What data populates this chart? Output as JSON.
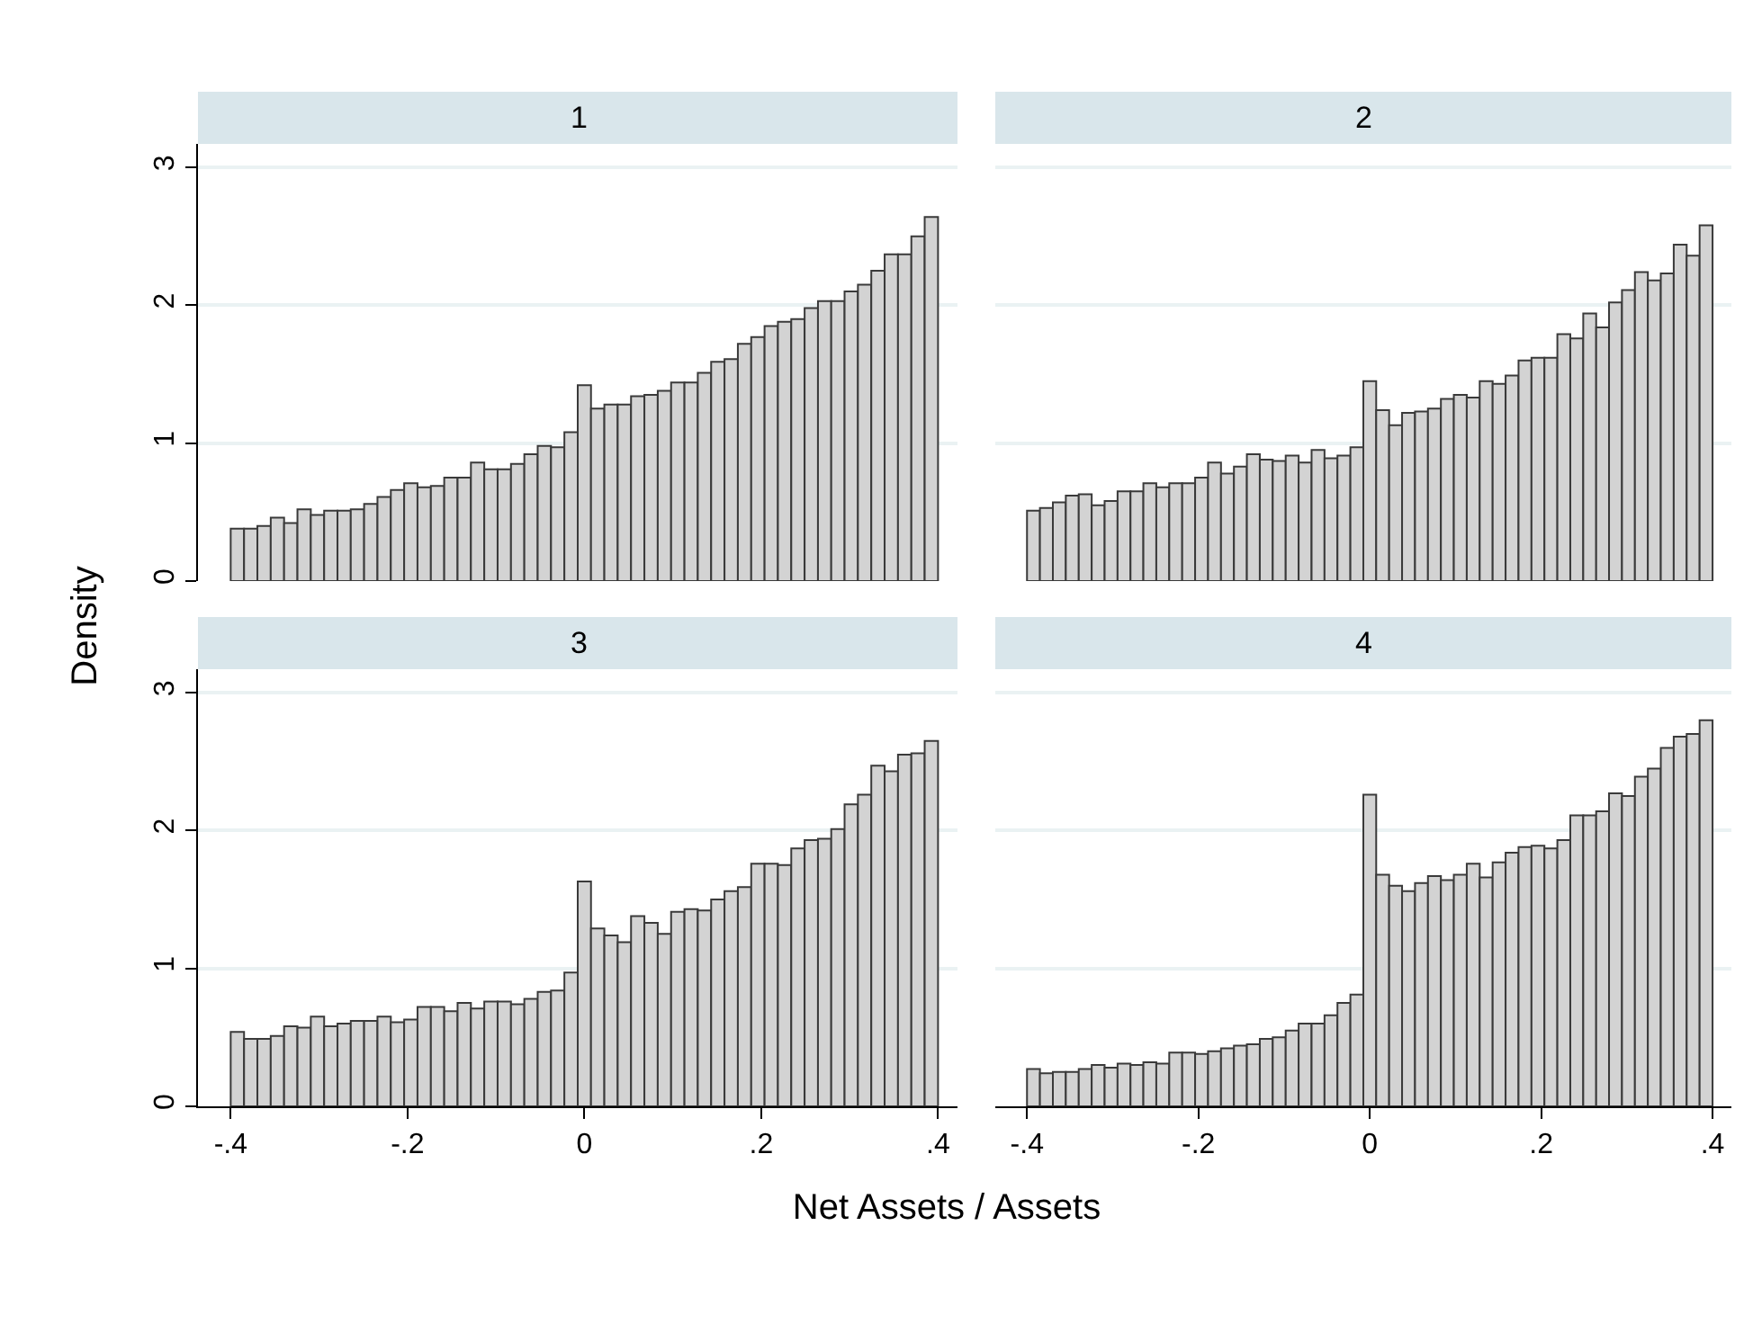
{
  "chart_data": [
    {
      "type": "histogram",
      "title": "1",
      "ylabel": "Density",
      "color": "#d3d3d3",
      "grid": "y",
      "tick_labels": "y",
      "xlim": [
        -0.437,
        0.422
      ],
      "ylim": [
        0,
        3.17
      ],
      "yticks": [
        0,
        1,
        2,
        3
      ],
      "bins": [
        -0.4,
        -0.3849,
        -0.3698,
        -0.3547,
        -0.3396,
        -0.3245,
        -0.3094,
        -0.2943,
        -0.2792,
        -0.2642,
        -0.2491,
        -0.234,
        -0.2189,
        -0.2038,
        -0.1887,
        -0.1736,
        -0.1585,
        -0.1434,
        -0.1283,
        -0.1132,
        -0.0981,
        -0.083,
        -0.0679,
        -0.0528,
        -0.0377,
        -0.0226,
        -0.0075,
        0.0075,
        0.0226,
        0.0377,
        0.0528,
        0.0679,
        0.083,
        0.0981,
        0.1132,
        0.1283,
        0.1434,
        0.1585,
        0.1736,
        0.1887,
        0.2038,
        0.2189,
        0.234,
        0.2491,
        0.2642,
        0.2792,
        0.2943,
        0.3094,
        0.3245,
        0.3396,
        0.3547,
        0.3698,
        0.3849,
        0.4
      ],
      "values": [
        0.38,
        0.38,
        0.4,
        0.46,
        0.42,
        0.52,
        0.48,
        0.51,
        0.51,
        0.52,
        0.56,
        0.61,
        0.66,
        0.71,
        0.68,
        0.69,
        0.75,
        0.75,
        0.86,
        0.81,
        0.81,
        0.85,
        0.92,
        0.98,
        0.97,
        1.08,
        1.42,
        1.25,
        1.28,
        1.28,
        1.34,
        1.35,
        1.38,
        1.44,
        1.44,
        1.51,
        1.59,
        1.61,
        1.72,
        1.77,
        1.85,
        1.88,
        1.9,
        1.98,
        2.03,
        2.03,
        2.1,
        2.15,
        2.25,
        2.37,
        2.37,
        2.5,
        2.64
      ]
    },
    {
      "type": "histogram",
      "title": "2",
      "color": "#d3d3d3",
      "grid": "y",
      "tick_labels": false,
      "xlim": [
        -0.437,
        0.422
      ],
      "yticks": [
        0,
        1,
        2,
        3
      ],
      "bins": [
        -0.4,
        -0.3849,
        -0.3698,
        -0.3547,
        -0.3396,
        -0.3245,
        -0.3094,
        -0.2943,
        -0.2792,
        -0.2642,
        -0.2491,
        -0.234,
        -0.2189,
        -0.2038,
        -0.1887,
        -0.1736,
        -0.1585,
        -0.1434,
        -0.1283,
        -0.1132,
        -0.0981,
        -0.083,
        -0.0679,
        -0.0528,
        -0.0377,
        -0.0226,
        -0.0075,
        0.0075,
        0.0226,
        0.0377,
        0.0528,
        0.0679,
        0.083,
        0.0981,
        0.1132,
        0.1283,
        0.1434,
        0.1585,
        0.1736,
        0.1887,
        0.2038,
        0.2189,
        0.234,
        0.2491,
        0.2642,
        0.2792,
        0.2943,
        0.3094,
        0.3245,
        0.3396,
        0.3547,
        0.3698,
        0.3849,
        0.4
      ],
      "values": [
        0.51,
        0.53,
        0.57,
        0.62,
        0.63,
        0.55,
        0.58,
        0.65,
        0.65,
        0.71,
        0.68,
        0.71,
        0.71,
        0.75,
        0.86,
        0.78,
        0.83,
        0.92,
        0.88,
        0.87,
        0.91,
        0.86,
        0.95,
        0.89,
        0.91,
        0.97,
        1.45,
        1.24,
        1.13,
        1.22,
        1.23,
        1.25,
        1.32,
        1.35,
        1.33,
        1.45,
        1.43,
        1.49,
        1.6,
        1.62,
        1.62,
        1.79,
        1.76,
        1.94,
        1.84,
        2.02,
        2.11,
        2.24,
        2.18,
        2.23,
        2.44,
        2.36,
        2.58
      ]
    },
    {
      "type": "histogram",
      "title": "3",
      "xlabel": "Net Assets / Assets",
      "color": "#d3d3d3",
      "grid": "y",
      "xlim": [
        -0.437,
        0.422
      ],
      "ylim": [
        0,
        3.17
      ],
      "xticks": [
        {
          "value": -0.4,
          "label": "-.4"
        },
        {
          "value": -0.2,
          "label": "-.2"
        },
        0,
        {
          "value": 0.2,
          "label": ".2"
        },
        {
          "value": 0.4,
          "label": ".4"
        }
      ],
      "yticks": [
        0,
        1,
        2,
        3
      ],
      "bins": [
        -0.4,
        -0.3849,
        -0.3698,
        -0.3547,
        -0.3396,
        -0.3245,
        -0.3094,
        -0.2943,
        -0.2792,
        -0.2642,
        -0.2491,
        -0.234,
        -0.2189,
        -0.2038,
        -0.1887,
        -0.1736,
        -0.1585,
        -0.1434,
        -0.1283,
        -0.1132,
        -0.0981,
        -0.083,
        -0.0679,
        -0.0528,
        -0.0377,
        -0.0226,
        -0.0075,
        0.0075,
        0.0226,
        0.0377,
        0.0528,
        0.0679,
        0.083,
        0.0981,
        0.1132,
        0.1283,
        0.1434,
        0.1585,
        0.1736,
        0.1887,
        0.2038,
        0.2189,
        0.234,
        0.2491,
        0.2642,
        0.2792,
        0.2943,
        0.3094,
        0.3245,
        0.3396,
        0.3547,
        0.3698,
        0.3849,
        0.4
      ],
      "values": [
        0.54,
        0.49,
        0.49,
        0.51,
        0.58,
        0.57,
        0.65,
        0.58,
        0.6,
        0.62,
        0.62,
        0.65,
        0.61,
        0.63,
        0.72,
        0.72,
        0.69,
        0.75,
        0.71,
        0.76,
        0.76,
        0.74,
        0.78,
        0.83,
        0.84,
        0.97,
        1.63,
        1.29,
        1.24,
        1.19,
        1.38,
        1.33,
        1.25,
        1.41,
        1.43,
        1.42,
        1.5,
        1.56,
        1.59,
        1.76,
        1.76,
        1.75,
        1.87,
        1.93,
        1.94,
        2.01,
        2.19,
        2.26,
        2.47,
        2.43,
        2.55,
        2.56,
        2.65
      ]
    },
    {
      "type": "histogram",
      "title": "4",
      "color": "#d3d3d3",
      "grid": "y",
      "tick_labels": "x",
      "xlim": [
        -0.437,
        0.422
      ],
      "xticks": [
        {
          "value": -0.4,
          "label": "-.4"
        },
        {
          "value": -0.2,
          "label": "-.2"
        },
        0,
        {
          "value": 0.2,
          "label": ".2"
        },
        {
          "value": 0.4,
          "label": ".4"
        }
      ],
      "yticks": [
        0,
        1,
        2,
        3
      ],
      "bins": [
        -0.4,
        -0.3849,
        -0.3698,
        -0.3547,
        -0.3396,
        -0.3245,
        -0.3094,
        -0.2943,
        -0.2792,
        -0.2642,
        -0.2491,
        -0.234,
        -0.2189,
        -0.2038,
        -0.1887,
        -0.1736,
        -0.1585,
        -0.1434,
        -0.1283,
        -0.1132,
        -0.0981,
        -0.083,
        -0.0679,
        -0.0528,
        -0.0377,
        -0.0226,
        -0.0075,
        0.0075,
        0.0226,
        0.0377,
        0.0528,
        0.0679,
        0.083,
        0.0981,
        0.1132,
        0.1283,
        0.1434,
        0.1585,
        0.1736,
        0.1887,
        0.2038,
        0.2189,
        0.234,
        0.2491,
        0.2642,
        0.2792,
        0.2943,
        0.3094,
        0.3245,
        0.3396,
        0.3547,
        0.3698,
        0.3849,
        0.4
      ],
      "values": [
        0.27,
        0.24,
        0.25,
        0.25,
        0.27,
        0.3,
        0.28,
        0.31,
        0.3,
        0.32,
        0.31,
        0.39,
        0.39,
        0.38,
        0.4,
        0.42,
        0.44,
        0.45,
        0.49,
        0.5,
        0.55,
        0.6,
        0.6,
        0.66,
        0.75,
        0.81,
        2.26,
        1.68,
        1.6,
        1.56,
        1.62,
        1.67,
        1.64,
        1.68,
        1.76,
        1.66,
        1.77,
        1.84,
        1.88,
        1.89,
        1.87,
        1.93,
        2.11,
        2.11,
        2.14,
        2.27,
        2.25,
        2.39,
        2.45,
        2.6,
        2.68,
        2.7,
        2.8
      ]
    }
  ]
}
